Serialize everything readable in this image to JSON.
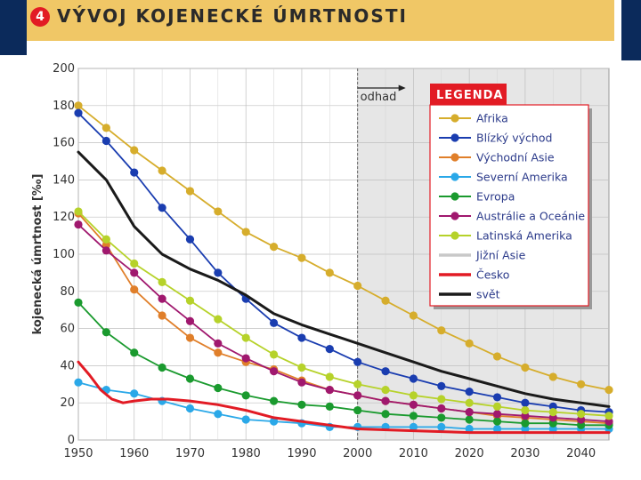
{
  "title": {
    "number": "4",
    "text": "VÝVOJ KOJENECKÉ ÚMRTNOSTI"
  },
  "chart_data": {
    "type": "line",
    "ylabel": "kojenecká úmrtnost [‰]",
    "xlabel": "",
    "xlim": [
      1950,
      2045
    ],
    "ylim": [
      0,
      200
    ],
    "x_ticks": [
      1950,
      1960,
      1970,
      1980,
      1990,
      2000,
      2010,
      2020,
      2030,
      2040
    ],
    "y_ticks": [
      0,
      20,
      40,
      60,
      80,
      100,
      120,
      140,
      160,
      180,
      200
    ],
    "forecast_label": "odhad",
    "forecast_start": 2000,
    "legend_title": "LEGENDA",
    "series": [
      {
        "name": "Afrika",
        "color": "#d6ad2c",
        "markers": true,
        "x": [
          1950,
          1955,
          1960,
          1965,
          1970,
          1975,
          1980,
          1985,
          1990,
          1995,
          2000,
          2005,
          2010,
          2015,
          2020,
          2025,
          2030,
          2035,
          2040,
          2045
        ],
        "values": [
          180,
          168,
          156,
          145,
          134,
          123,
          112,
          104,
          98,
          90,
          83,
          75,
          67,
          59,
          52,
          45,
          39,
          34,
          30,
          27
        ]
      },
      {
        "name": "Blízký východ",
        "color": "#1a3db0",
        "markers": true,
        "x": [
          1950,
          1955,
          1960,
          1965,
          1970,
          1975,
          1980,
          1985,
          1990,
          1995,
          2000,
          2005,
          2010,
          2015,
          2020,
          2025,
          2030,
          2035,
          2040,
          2045
        ],
        "values": [
          176,
          161,
          144,
          125,
          108,
          90,
          76,
          63,
          55,
          49,
          42,
          37,
          33,
          29,
          26,
          23,
          20,
          18,
          16,
          15
        ]
      },
      {
        "name": "Východní Asie",
        "color": "#e07f2a",
        "markers": true,
        "x": [
          1950,
          1955,
          1960,
          1965,
          1970,
          1975,
          1980,
          1985,
          1990,
          1995,
          2000,
          2005,
          2010,
          2015,
          2020,
          2025,
          2030,
          2035,
          2040,
          2045
        ],
        "values": [
          122,
          105,
          81,
          67,
          55,
          47,
          42,
          38,
          32,
          27,
          24,
          21,
          19,
          17,
          15,
          13,
          12,
          11,
          10,
          9
        ]
      },
      {
        "name": "Severní Amerika",
        "color": "#2aa8e8",
        "markers": true,
        "x": [
          1950,
          1955,
          1960,
          1965,
          1970,
          1975,
          1980,
          1985,
          1990,
          1995,
          2000,
          2005,
          2010,
          2015,
          2020,
          2025,
          2030,
          2035,
          2040,
          2045
        ],
        "values": [
          31,
          27,
          25,
          21,
          17,
          14,
          11,
          10,
          9,
          7,
          7,
          7,
          7,
          7,
          6,
          6,
          6,
          6,
          6,
          6
        ]
      },
      {
        "name": "Evropa",
        "color": "#1a9a2e",
        "markers": true,
        "x": [
          1950,
          1955,
          1960,
          1965,
          1970,
          1975,
          1980,
          1985,
          1990,
          1995,
          2000,
          2005,
          2010,
          2015,
          2020,
          2025,
          2030,
          2035,
          2040,
          2045
        ],
        "values": [
          74,
          58,
          47,
          39,
          33,
          28,
          24,
          21,
          19,
          18,
          16,
          14,
          13,
          12,
          11,
          10,
          9,
          9,
          8,
          8
        ]
      },
      {
        "name": "Austrálie a Oceánie",
        "color": "#a0186e",
        "markers": true,
        "x": [
          1950,
          1955,
          1960,
          1965,
          1970,
          1975,
          1980,
          1985,
          1990,
          1995,
          2000,
          2005,
          2010,
          2015,
          2020,
          2025,
          2030,
          2035,
          2040,
          2045
        ],
        "values": [
          116,
          102,
          90,
          76,
          64,
          52,
          44,
          37,
          31,
          27,
          24,
          21,
          19,
          17,
          15,
          14,
          13,
          12,
          11,
          10
        ]
      },
      {
        "name": "Latinská Amerika",
        "color": "#b6d22a",
        "markers": true,
        "x": [
          1950,
          1955,
          1960,
          1965,
          1970,
          1975,
          1980,
          1985,
          1990,
          1995,
          2000,
          2005,
          2010,
          2015,
          2020,
          2025,
          2030,
          2035,
          2040,
          2045
        ],
        "values": [
          123,
          108,
          95,
          85,
          75,
          65,
          55,
          46,
          39,
          34,
          30,
          27,
          24,
          22,
          20,
          18,
          16,
          15,
          14,
          13
        ]
      },
      {
        "name": "Jižní Asie",
        "color": "#c8c8c8",
        "markers": false,
        "x": [],
        "values": []
      },
      {
        "name": "Česko",
        "color": "#e21b24",
        "markers": false,
        "x": [
          1950,
          1952,
          1954,
          1956,
          1958,
          1960,
          1963,
          1966,
          1970,
          1975,
          1980,
          1985,
          1990,
          1995,
          2000,
          2010,
          2020,
          2030,
          2040,
          2045
        ],
        "values": [
          42,
          35,
          27,
          22,
          20,
          21,
          22,
          22,
          21,
          19,
          16,
          12,
          10,
          8,
          6,
          5,
          4,
          4,
          4,
          4
        ]
      },
      {
        "name": "svět",
        "color": "#1a1a1a",
        "markers": false,
        "x": [
          1950,
          1955,
          1960,
          1965,
          1970,
          1975,
          1980,
          1985,
          1990,
          1995,
          2000,
          2005,
          2010,
          2015,
          2020,
          2025,
          2030,
          2035,
          2040,
          2045
        ],
        "values": [
          155,
          140,
          115,
          100,
          92,
          86,
          78,
          68,
          62,
          57,
          52,
          47,
          42,
          37,
          33,
          29,
          25,
          22,
          20,
          18
        ]
      }
    ]
  }
}
